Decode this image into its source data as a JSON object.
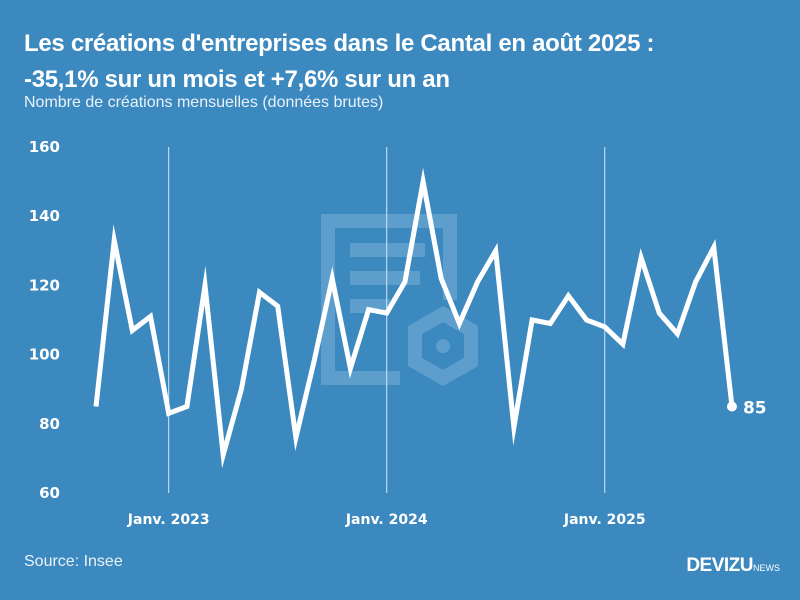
{
  "title_line1": "Les créations d'entreprises dans le Cantal en août 2025 :",
  "title_line2": "-35,1% sur un mois et +7,6% sur un an",
  "subtitle": "Nombre de créations mensuelles (données brutes)",
  "source": "Source: Insee",
  "brand": {
    "main": "DEVIZU",
    "sub": "NEWS"
  },
  "colors": {
    "background": "#3c89c0",
    "line": "#ffffff",
    "watermark": "#6aa6d2"
  },
  "last_label": "85",
  "chart_data": {
    "type": "line",
    "title": "Les créations d'entreprises dans le Cantal en août 2025 : -35,1% sur un mois et +7,6% sur un an",
    "subtitle": "Nombre de créations mensuelles (données brutes)",
    "xlabel": "",
    "ylabel": "",
    "ylim": [
      60,
      160
    ],
    "yticks": [
      60,
      80,
      100,
      120,
      140,
      160
    ],
    "xtick_labels": [
      {
        "label": "Janv. 2023",
        "x": "2023-01"
      },
      {
        "label": "Janv. 2024",
        "x": "2024-01"
      },
      {
        "label": "Janv. 2025",
        "x": "2025-01"
      }
    ],
    "grid": "vertical lines at January of each year",
    "legend": "none",
    "x": [
      "2022-09",
      "2022-10",
      "2022-11",
      "2022-12",
      "2023-01",
      "2023-02",
      "2023-03",
      "2023-04",
      "2023-05",
      "2023-06",
      "2023-07",
      "2023-08",
      "2023-09",
      "2023-10",
      "2023-11",
      "2023-12",
      "2024-01",
      "2024-02",
      "2024-03",
      "2024-04",
      "2024-05",
      "2024-06",
      "2024-07",
      "2024-08",
      "2024-09",
      "2024-10",
      "2024-11",
      "2024-12",
      "2025-01",
      "2025-02",
      "2025-03",
      "2025-04",
      "2025-05",
      "2025-06",
      "2025-07",
      "2025-08"
    ],
    "series": [
      {
        "name": "Créations d'entreprises",
        "values": [
          85,
          133,
          107,
          111,
          83,
          85,
          120,
          71,
          90,
          118,
          114,
          76,
          98,
          122,
          96,
          113,
          112,
          121,
          150,
          122,
          109,
          121,
          130,
          79,
          110,
          109,
          117,
          110,
          108,
          103,
          128,
          112,
          106,
          121,
          131,
          85
        ]
      }
    ],
    "annotations": [
      {
        "x": "2025-08",
        "text": "85"
      }
    ]
  }
}
